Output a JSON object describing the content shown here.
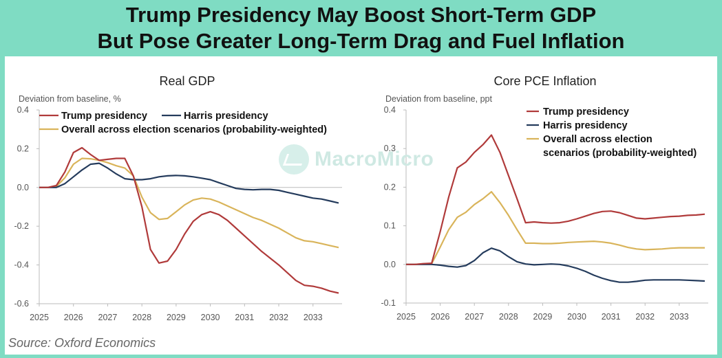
{
  "title_line1": "Trump Presidency May Boost Short-Term GDP",
  "title_line2": "But Pose Greater Long-Term Drag and Fuel Inflation",
  "source": "Source: Oxford Economics",
  "watermark": "MacroMicro",
  "colors": {
    "trump": "#b03a3a",
    "harris": "#243b5c",
    "overall": "#d9b45a",
    "axis": "#bbbbbb",
    "text": "#555555"
  },
  "chart_data": [
    {
      "type": "line",
      "title": "Real GDP",
      "ylabel": "Deviation from baseline, %",
      "ylim": [
        -0.6,
        0.4
      ],
      "yticks": [
        0.4,
        0.2,
        0.0,
        -0.2,
        -0.4,
        -0.6
      ],
      "ytick_labels": [
        "0.4",
        "0.2",
        "0.0",
        "-0.2",
        "-0.4",
        "-0.6"
      ],
      "xlim": [
        2025,
        2033.85
      ],
      "xticks": [
        "2025",
        "2026",
        "2027",
        "2028",
        "2029",
        "2030",
        "2031",
        "2032",
        "2033"
      ],
      "legend_position": "top-left",
      "series": [
        {
          "name": "Trump presidency",
          "color": "#b03a3a",
          "x": [
            2025,
            2025.25,
            2025.5,
            2025.75,
            2026,
            2026.25,
            2026.5,
            2026.75,
            2027,
            2027.25,
            2027.5,
            2027.75,
            2028,
            2028.25,
            2028.5,
            2028.75,
            2029,
            2029.25,
            2029.5,
            2029.75,
            2030,
            2030.25,
            2030.5,
            2030.75,
            2031,
            2031.25,
            2031.5,
            2031.75,
            2032,
            2032.25,
            2032.5,
            2032.75,
            2033,
            2033.25,
            2033.5,
            2033.75
          ],
          "y": [
            0,
            0,
            0.01,
            0.08,
            0.18,
            0.205,
            0.17,
            0.14,
            0.145,
            0.15,
            0.15,
            0.06,
            -0.1,
            -0.32,
            -0.39,
            -0.38,
            -0.32,
            -0.24,
            -0.175,
            -0.14,
            -0.125,
            -0.14,
            -0.17,
            -0.21,
            -0.25,
            -0.29,
            -0.33,
            -0.365,
            -0.4,
            -0.44,
            -0.48,
            -0.505,
            -0.51,
            -0.52,
            -0.535,
            -0.545
          ]
        },
        {
          "name": "Harris presidency",
          "color": "#243b5c",
          "x": [
            2025,
            2025.25,
            2025.5,
            2025.75,
            2026,
            2026.25,
            2026.5,
            2026.75,
            2027,
            2027.25,
            2027.5,
            2027.75,
            2028,
            2028.25,
            2028.5,
            2028.75,
            2029,
            2029.25,
            2029.5,
            2029.75,
            2030,
            2030.25,
            2030.5,
            2030.75,
            2031,
            2031.25,
            2031.5,
            2031.75,
            2032,
            2032.25,
            2032.5,
            2032.75,
            2033,
            2033.25,
            2033.5,
            2033.75
          ],
          "y": [
            0,
            0,
            0,
            0.02,
            0.055,
            0.09,
            0.12,
            0.125,
            0.1,
            0.07,
            0.045,
            0.04,
            0.04,
            0.045,
            0.055,
            0.06,
            0.062,
            0.06,
            0.055,
            0.048,
            0.04,
            0.025,
            0.01,
            -0.005,
            -0.01,
            -0.012,
            -0.01,
            -0.01,
            -0.015,
            -0.025,
            -0.035,
            -0.045,
            -0.055,
            -0.06,
            -0.07,
            -0.08
          ]
        },
        {
          "name": "Overall across election scenarios (probability-weighted)",
          "color": "#d9b45a",
          "x": [
            2025,
            2025.25,
            2025.5,
            2025.75,
            2026,
            2026.25,
            2026.5,
            2026.75,
            2027,
            2027.25,
            2027.5,
            2027.75,
            2028,
            2028.25,
            2028.5,
            2028.75,
            2029,
            2029.25,
            2029.5,
            2029.75,
            2030,
            2030.25,
            2030.5,
            2030.75,
            2031,
            2031.25,
            2031.5,
            2031.75,
            2032,
            2032.25,
            2032.5,
            2032.75,
            2033,
            2033.25,
            2033.5,
            2033.75
          ],
          "y": [
            0,
            0,
            0.005,
            0.05,
            0.12,
            0.15,
            0.148,
            0.14,
            0.128,
            0.112,
            0.1,
            0.06,
            -0.05,
            -0.13,
            -0.165,
            -0.16,
            -0.125,
            -0.09,
            -0.065,
            -0.055,
            -0.06,
            -0.075,
            -0.095,
            -0.115,
            -0.135,
            -0.155,
            -0.17,
            -0.19,
            -0.21,
            -0.235,
            -0.26,
            -0.275,
            -0.28,
            -0.29,
            -0.3,
            -0.31
          ]
        }
      ]
    },
    {
      "type": "line",
      "title": "Core PCE Inflation",
      "ylabel": "Deviation from baseline, ppt",
      "ylim": [
        -0.1,
        0.4
      ],
      "yticks": [
        0.4,
        0.3,
        0.2,
        0.1,
        0.0,
        -0.1
      ],
      "ytick_labels": [
        "0.4",
        "0.3",
        "0.2",
        "0.1",
        "0.0",
        "-0.1"
      ],
      "xlim": [
        2025,
        2033.85
      ],
      "xticks": [
        "2025",
        "2026",
        "2027",
        "2028",
        "2029",
        "2030",
        "2031",
        "2032",
        "2033"
      ],
      "legend_position": "top-right",
      "series": [
        {
          "name": "Trump presidency",
          "color": "#b03a3a",
          "x": [
            2025,
            2025.25,
            2025.5,
            2025.75,
            2026,
            2026.25,
            2026.5,
            2026.75,
            2027,
            2027.25,
            2027.5,
            2027.75,
            2028,
            2028.25,
            2028.5,
            2028.75,
            2029,
            2029.25,
            2029.5,
            2029.75,
            2030,
            2030.25,
            2030.5,
            2030.75,
            2031,
            2031.25,
            2031.5,
            2031.75,
            2032,
            2032.25,
            2032.5,
            2032.75,
            2033,
            2033.25,
            2033.5,
            2033.75
          ],
          "y": [
            0,
            0,
            0.002,
            0.003,
            0.085,
            0.175,
            0.25,
            0.265,
            0.29,
            0.31,
            0.335,
            0.29,
            0.23,
            0.17,
            0.108,
            0.11,
            0.108,
            0.107,
            0.108,
            0.112,
            0.118,
            0.125,
            0.132,
            0.137,
            0.138,
            0.134,
            0.127,
            0.12,
            0.118,
            0.12,
            0.122,
            0.124,
            0.125,
            0.127,
            0.128,
            0.13
          ]
        },
        {
          "name": "Harris presidency",
          "color": "#243b5c",
          "x": [
            2025,
            2025.25,
            2025.5,
            2025.75,
            2026,
            2026.25,
            2026.5,
            2026.75,
            2027,
            2027.25,
            2027.5,
            2027.75,
            2028,
            2028.25,
            2028.5,
            2028.75,
            2029,
            2029.25,
            2029.5,
            2029.75,
            2030,
            2030.25,
            2030.5,
            2030.75,
            2031,
            2031.25,
            2031.5,
            2031.75,
            2032,
            2032.25,
            2032.5,
            2032.75,
            2033,
            2033.25,
            2033.5,
            2033.75
          ],
          "y": [
            0,
            0,
            0,
            0,
            -0.002,
            -0.005,
            -0.007,
            -0.003,
            0.01,
            0.03,
            0.042,
            0.035,
            0.02,
            0.007,
            0.001,
            -0.001,
            0,
            0.001,
            0,
            -0.004,
            -0.01,
            -0.018,
            -0.028,
            -0.036,
            -0.042,
            -0.046,
            -0.046,
            -0.044,
            -0.041,
            -0.04,
            -0.04,
            -0.04,
            -0.04,
            -0.041,
            -0.042,
            -0.043
          ]
        },
        {
          "name": "Overall across election scenarios (probability-weighted)",
          "color": "#d9b45a",
          "x": [
            2025,
            2025.25,
            2025.5,
            2025.75,
            2026,
            2026.25,
            2026.5,
            2026.75,
            2027,
            2027.25,
            2027.5,
            2027.75,
            2028,
            2028.25,
            2028.5,
            2028.75,
            2029,
            2029.25,
            2029.5,
            2029.75,
            2030,
            2030.25,
            2030.5,
            2030.75,
            2031,
            2031.25,
            2031.5,
            2031.75,
            2032,
            2032.25,
            2032.5,
            2032.75,
            2033,
            2033.25,
            2033.5,
            2033.75
          ],
          "y": [
            0,
            0,
            0.001,
            0.002,
            0.045,
            0.09,
            0.122,
            0.135,
            0.155,
            0.17,
            0.188,
            0.16,
            0.127,
            0.09,
            0.055,
            0.055,
            0.054,
            0.054,
            0.055,
            0.057,
            0.058,
            0.059,
            0.06,
            0.058,
            0.055,
            0.05,
            0.044,
            0.04,
            0.038,
            0.039,
            0.04,
            0.042,
            0.043,
            0.043,
            0.043,
            0.043
          ]
        }
      ]
    }
  ]
}
